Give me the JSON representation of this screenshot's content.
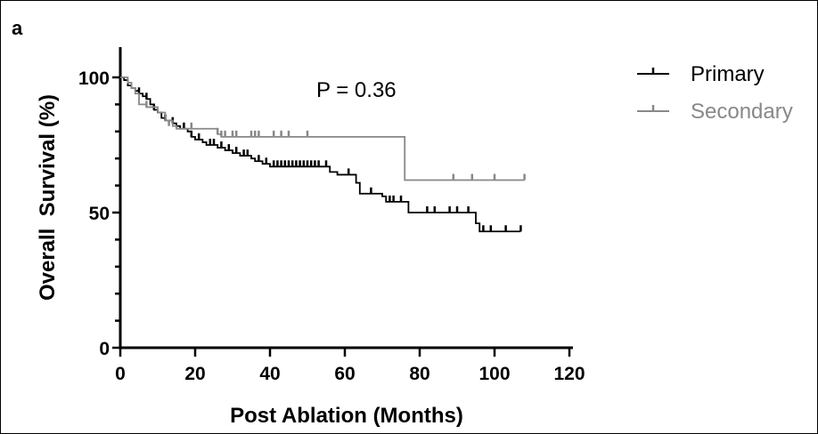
{
  "panel_label": "a",
  "annotation": "P = 0.36",
  "chart_data": {
    "type": "line",
    "subtype": "kaplan-meier",
    "title": "",
    "xlabel": "Post Ablation (Months)",
    "ylabel": "Overall  Survival (%)",
    "xlim": [
      0,
      120
    ],
    "ylim": [
      0,
      100
    ],
    "xticks": [
      0,
      20,
      40,
      60,
      80,
      100,
      120
    ],
    "yticks": [
      0,
      50,
      100
    ],
    "xtick_labels": [
      "0",
      "20",
      "40",
      "60",
      "80",
      "100",
      "120"
    ],
    "ytick_labels": [
      "0",
      "50",
      "100"
    ],
    "y_minor_step": 10,
    "grid": false,
    "legend_position": "top-right, outside plot",
    "series": [
      {
        "name": "Primary",
        "color": "#000000",
        "steps": [
          [
            0,
            100
          ],
          [
            1,
            99
          ],
          [
            2,
            97
          ],
          [
            3,
            96
          ],
          [
            4,
            95
          ],
          [
            5,
            94
          ],
          [
            6,
            93
          ],
          [
            7,
            92
          ],
          [
            8,
            90
          ],
          [
            9,
            88
          ],
          [
            10,
            87
          ],
          [
            11,
            85
          ],
          [
            12,
            84
          ],
          [
            14,
            83
          ],
          [
            15,
            82
          ],
          [
            16,
            81
          ],
          [
            18,
            80
          ],
          [
            19,
            78
          ],
          [
            20,
            77
          ],
          [
            22,
            76
          ],
          [
            23,
            75
          ],
          [
            26,
            74
          ],
          [
            28,
            73
          ],
          [
            30,
            72
          ],
          [
            32,
            71
          ],
          [
            35,
            70
          ],
          [
            36,
            69
          ],
          [
            38,
            68
          ],
          [
            40,
            67
          ],
          [
            56,
            65
          ],
          [
            58,
            64
          ],
          [
            63,
            61
          ],
          [
            64,
            57
          ],
          [
            70,
            56
          ],
          [
            71,
            54
          ],
          [
            77,
            50
          ],
          [
            95,
            46
          ],
          [
            96,
            43
          ],
          [
            107,
            43
          ]
        ],
        "censored": [
          [
            5,
            94
          ],
          [
            7,
            92
          ],
          [
            9,
            88
          ],
          [
            12,
            84
          ],
          [
            14,
            83
          ],
          [
            17,
            81
          ],
          [
            19,
            78
          ],
          [
            21,
            77
          ],
          [
            24,
            75
          ],
          [
            25,
            75
          ],
          [
            27,
            74
          ],
          [
            29,
            73
          ],
          [
            31,
            72
          ],
          [
            33,
            71
          ],
          [
            34,
            71
          ],
          [
            37,
            69
          ],
          [
            39,
            68
          ],
          [
            41,
            67
          ],
          [
            42,
            67
          ],
          [
            43,
            67
          ],
          [
            44,
            67
          ],
          [
            45,
            67
          ],
          [
            46,
            67
          ],
          [
            47,
            67
          ],
          [
            48,
            67
          ],
          [
            49,
            67
          ],
          [
            50,
            67
          ],
          [
            51,
            67
          ],
          [
            52,
            67
          ],
          [
            53,
            67
          ],
          [
            55,
            67
          ],
          [
            61,
            64
          ],
          [
            67,
            57
          ],
          [
            72,
            54
          ],
          [
            73,
            54
          ],
          [
            75,
            54
          ],
          [
            82,
            50
          ],
          [
            84,
            50
          ],
          [
            88,
            50
          ],
          [
            90,
            50
          ],
          [
            93,
            50
          ],
          [
            97,
            43
          ],
          [
            99,
            43
          ],
          [
            103,
            43
          ],
          [
            107,
            43
          ]
        ]
      },
      {
        "name": "Secondary",
        "color": "#888888",
        "steps": [
          [
            0,
            100
          ],
          [
            2,
            98
          ],
          [
            3,
            96
          ],
          [
            4,
            94
          ],
          [
            5,
            90
          ],
          [
            7,
            89
          ],
          [
            10,
            87
          ],
          [
            12,
            84
          ],
          [
            14,
            82
          ],
          [
            15,
            81
          ],
          [
            26,
            79
          ],
          [
            27,
            78
          ],
          [
            76,
            62
          ],
          [
            108,
            62
          ]
        ],
        "censored": [
          [
            7,
            89
          ],
          [
            13,
            82
          ],
          [
            19,
            81
          ],
          [
            26,
            79
          ],
          [
            27,
            78
          ],
          [
            28,
            78
          ],
          [
            30,
            78
          ],
          [
            31,
            78
          ],
          [
            35,
            78
          ],
          [
            36,
            78
          ],
          [
            37,
            78
          ],
          [
            41,
            78
          ],
          [
            43,
            78
          ],
          [
            45,
            78
          ],
          [
            50,
            78
          ],
          [
            89,
            62
          ],
          [
            94,
            62
          ],
          [
            100,
            62
          ],
          [
            108,
            62
          ]
        ]
      }
    ]
  }
}
